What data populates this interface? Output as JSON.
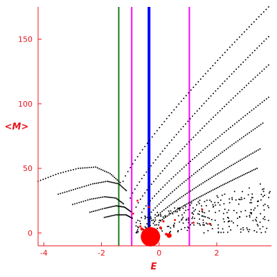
{
  "chart_data": {
    "type": "scatter",
    "title": "",
    "xlabel": "E",
    "ylabel": "<M>",
    "xlim": [
      -4.2,
      3.9
    ],
    "ylim": [
      -10,
      175
    ],
    "x_ticks": [
      -4,
      -2,
      0,
      2
    ],
    "y_ticks": [
      0,
      50,
      100,
      150
    ],
    "grid": false,
    "colors": {
      "axis": "#e8141c",
      "points": "#000000",
      "highlight": "#ff0000",
      "line_green": "#1a7a1a",
      "line_blue": "#0000ff",
      "line_magenta": "#ff00ff"
    },
    "vertical_lines": [
      {
        "x": -1.4,
        "color": "#1a7a1a",
        "style": "thin"
      },
      {
        "x": -0.95,
        "color": "#ff00ff",
        "style": "thin"
      },
      {
        "x": -0.35,
        "color": "#0000ff",
        "style": "thick"
      },
      {
        "x": 1.05,
        "color": "#ff00ff",
        "style": "thin"
      }
    ],
    "curves": [
      {
        "x0": -1.25,
        "x1": 3.8,
        "y0": 40,
        "y1": 175
      },
      {
        "x0": -1.0,
        "x1": 3.8,
        "y0": 27,
        "y1": 152
      },
      {
        "x0": -0.8,
        "x1": 3.8,
        "y0": 20,
        "y1": 130
      },
      {
        "x0": -0.6,
        "x1": 3.8,
        "y0": 16,
        "y1": 105
      },
      {
        "x0": -0.4,
        "x1": 3.6,
        "y0": 12,
        "y1": 85
      },
      {
        "x0": -0.2,
        "x1": 3.5,
        "y0": 10,
        "y1": 65
      },
      {
        "x0": 0.0,
        "x1": 3.4,
        "y0": 8,
        "y1": 50
      }
    ],
    "arcs": [
      {
        "xs": [
          -4.2,
          -3.5,
          -2.8,
          -2.2,
          -1.7,
          -1.3
        ],
        "ys": [
          40,
          46,
          50,
          51,
          46,
          38
        ]
      },
      {
        "xs": [
          -3.5,
          -2.9,
          -2.3,
          -1.8,
          -1.4,
          -1.1
        ],
        "ys": [
          30,
          34,
          38,
          40,
          38,
          32
        ]
      },
      {
        "xs": [
          -3.0,
          -2.4,
          -1.9,
          -1.5,
          -1.2
        ],
        "ys": [
          22,
          26,
          28,
          27,
          22
        ]
      },
      {
        "xs": [
          -2.4,
          -1.9,
          -1.5,
          -1.2,
          -0.95
        ],
        "ys": [
          16,
          19,
          21,
          20,
          16
        ]
      },
      {
        "xs": [
          -1.9,
          -1.5,
          -1.15,
          -0.9
        ],
        "ys": [
          12,
          14,
          14,
          11
        ]
      }
    ],
    "scatter_region": {
      "xmin": -0.8,
      "xmax": 3.85,
      "ymin": 0,
      "ymax": 40,
      "count": 280,
      "seed": 11
    },
    "highlight_points": [
      {
        "x": -0.3,
        "y": -3,
        "size": 14
      },
      {
        "x": 0.35,
        "y": -2,
        "size": 3.5
      },
      {
        "x": -0.6,
        "y": 3,
        "size": 2.2
      },
      {
        "x": 0.05,
        "y": 4,
        "size": 2
      },
      {
        "x": 0.25,
        "y": -1,
        "size": 2
      },
      {
        "x": -0.35,
        "y": 20,
        "size": 1.6
      },
      {
        "x": -0.75,
        "y": 25,
        "size": 1.4
      },
      {
        "x": 0.15,
        "y": 9,
        "size": 1.6
      },
      {
        "x": 0.55,
        "y": 10,
        "size": 1.4
      },
      {
        "x": 1.2,
        "y": 8,
        "size": 1.4
      },
      {
        "x": 1.75,
        "y": 7,
        "size": 1.4
      },
      {
        "x": 1.5,
        "y": 18,
        "size": 1.4
      },
      {
        "x": -0.9,
        "y": 15,
        "size": 1.4
      },
      {
        "x": -0.65,
        "y": 5,
        "size": 1.6
      }
    ]
  }
}
